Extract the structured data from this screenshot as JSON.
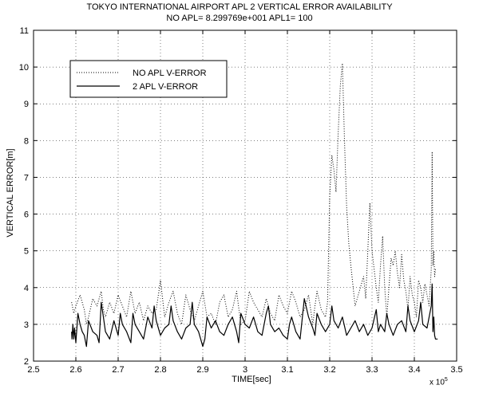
{
  "chart_data": {
    "type": "line",
    "title": "TOKYO INTERNATIONAL AIRPORT APL 2 VERTICAL ERROR AVAILABILITY",
    "subtitle": "NO APL= 8.299769e+001  APL1= 100",
    "xlabel": "TIME[sec]",
    "ylabel": "VERTICAL ERROR[m]",
    "x_multiplier": "x 10",
    "x_multiplier_exp": "5",
    "xlim": [
      2.5,
      3.5
    ],
    "ylim": [
      2,
      11
    ],
    "xticks": [
      "2.5",
      "2.6",
      "2.7",
      "2.8",
      "2.9",
      "3",
      "3.1",
      "3.2",
      "3.3",
      "3.4",
      "3.5"
    ],
    "yticks": [
      "2",
      "3",
      "4",
      "5",
      "6",
      "7",
      "8",
      "9",
      "10",
      "11"
    ],
    "grid": true,
    "legend_position": "top-left",
    "series": [
      {
        "name": "NO APL V-ERROR",
        "style": "dotted",
        "color": "#000000",
        "x": [
          2.59,
          2.595,
          2.6,
          2.61,
          2.62,
          2.625,
          2.63,
          2.64,
          2.65,
          2.66,
          2.665,
          2.67,
          2.68,
          2.69,
          2.7,
          2.71,
          2.72,
          2.73,
          2.74,
          2.75,
          2.76,
          2.77,
          2.78,
          2.79,
          2.8,
          2.81,
          2.82,
          2.83,
          2.84,
          2.85,
          2.86,
          2.87,
          2.88,
          2.89,
          2.9,
          2.91,
          2.92,
          2.93,
          2.94,
          2.95,
          2.96,
          2.97,
          2.98,
          2.99,
          3.0,
          3.01,
          3.02,
          3.03,
          3.04,
          3.05,
          3.06,
          3.07,
          3.08,
          3.09,
          3.1,
          3.11,
          3.12,
          3.13,
          3.14,
          3.15,
          3.16,
          3.165,
          3.17,
          3.18,
          3.19,
          3.195,
          3.2,
          3.205,
          3.21,
          3.215,
          3.22,
          3.225,
          3.23,
          3.235,
          3.24,
          3.245,
          3.25,
          3.26,
          3.27,
          3.28,
          3.285,
          3.29,
          3.295,
          3.3,
          3.31,
          3.315,
          3.32,
          3.325,
          3.33,
          3.335,
          3.34,
          3.345,
          3.35,
          3.355,
          3.36,
          3.365,
          3.37,
          3.375,
          3.38,
          3.385,
          3.39,
          3.395,
          3.4,
          3.405,
          3.41,
          3.415,
          3.42,
          3.425,
          3.43,
          3.435,
          3.44,
          3.442,
          3.444,
          3.446,
          3.448,
          3.45
        ],
        "y": [
          3.6,
          3.3,
          3.5,
          3.8,
          3.4,
          3.0,
          3.2,
          3.7,
          3.5,
          3.9,
          3.4,
          3.2,
          3.6,
          3.3,
          3.8,
          3.5,
          3.2,
          3.9,
          3.3,
          3.6,
          3.1,
          3.5,
          3.3,
          3.4,
          4.2,
          3.2,
          3.6,
          3.9,
          3.3,
          3.0,
          3.8,
          3.4,
          3.1,
          3.5,
          3.9,
          3.2,
          3.3,
          3.0,
          3.6,
          3.8,
          3.2,
          3.4,
          3.9,
          3.0,
          3.1,
          3.9,
          3.6,
          3.4,
          3.2,
          3.7,
          3.3,
          3.1,
          3.8,
          3.5,
          3.3,
          3.9,
          3.6,
          3.2,
          3.4,
          3.8,
          3.0,
          3.5,
          3.9,
          3.4,
          3.2,
          3.6,
          6.5,
          7.6,
          7.2,
          6.6,
          8.2,
          9.5,
          10.1,
          8.0,
          6.2,
          5.2,
          4.6,
          3.5,
          3.9,
          4.3,
          3.7,
          5.0,
          6.3,
          5.0,
          4.0,
          3.6,
          4.6,
          5.4,
          4.0,
          3.2,
          4.0,
          4.8,
          4.6,
          5.0,
          4.4,
          4.0,
          4.9,
          4.2,
          3.9,
          3.4,
          4.3,
          3.8,
          3.6,
          3.2,
          4.2,
          4.0,
          3.6,
          4.1,
          3.8,
          3.5,
          4.5,
          7.7,
          4.6,
          5.0,
          4.3,
          4.5
        ],
        "note": ""
      },
      {
        "name": "2 APL V-ERROR",
        "style": "solid",
        "color": "#000000",
        "x": [
          2.59,
          2.591,
          2.593,
          2.595,
          2.597,
          2.6,
          2.605,
          2.61,
          2.615,
          2.62,
          2.625,
          2.63,
          2.64,
          2.65,
          2.655,
          2.66,
          2.665,
          2.67,
          2.68,
          2.69,
          2.7,
          2.705,
          2.71,
          2.72,
          2.73,
          2.735,
          2.74,
          2.75,
          2.76,
          2.77,
          2.78,
          2.785,
          2.79,
          2.8,
          2.81,
          2.82,
          2.825,
          2.83,
          2.84,
          2.85,
          2.86,
          2.87,
          2.875,
          2.88,
          2.89,
          2.9,
          2.905,
          2.91,
          2.92,
          2.93,
          2.94,
          2.95,
          2.96,
          2.97,
          2.98,
          2.985,
          2.99,
          3.0,
          3.01,
          3.02,
          3.03,
          3.04,
          3.05,
          3.055,
          3.06,
          3.07,
          3.08,
          3.09,
          3.1,
          3.105,
          3.11,
          3.12,
          3.13,
          3.14,
          3.15,
          3.16,
          3.165,
          3.17,
          3.18,
          3.19,
          3.2,
          3.205,
          3.21,
          3.22,
          3.23,
          3.24,
          3.25,
          3.26,
          3.27,
          3.28,
          3.29,
          3.3,
          3.31,
          3.315,
          3.32,
          3.33,
          3.335,
          3.34,
          3.35,
          3.36,
          3.37,
          3.38,
          3.385,
          3.39,
          3.4,
          3.41,
          3.415,
          3.42,
          3.43,
          3.44,
          3.442,
          3.444,
          3.446,
          3.448,
          3.45,
          3.455
        ],
        "y": [
          2.8,
          2.6,
          3.0,
          2.6,
          2.9,
          2.5,
          3.3,
          3.0,
          2.8,
          2.7,
          2.4,
          3.1,
          2.8,
          2.7,
          2.5,
          3.6,
          3.2,
          2.8,
          2.6,
          3.1,
          2.7,
          3.3,
          3.0,
          2.8,
          2.5,
          3.3,
          3.0,
          2.8,
          2.6,
          3.2,
          2.9,
          3.5,
          3.1,
          2.7,
          2.9,
          3.0,
          3.5,
          3.1,
          2.8,
          2.6,
          2.9,
          3.0,
          3.6,
          3.0,
          2.8,
          2.4,
          2.6,
          3.2,
          2.9,
          3.1,
          2.8,
          2.7,
          3.0,
          3.2,
          2.8,
          2.5,
          3.3,
          3.0,
          2.9,
          3.2,
          2.8,
          2.7,
          3.3,
          3.5,
          3.0,
          2.8,
          2.9,
          2.7,
          2.6,
          3.0,
          3.2,
          2.8,
          2.6,
          3.7,
          3.2,
          2.9,
          2.7,
          3.3,
          3.0,
          2.8,
          3.0,
          3.5,
          3.1,
          2.9,
          3.2,
          2.7,
          2.9,
          3.1,
          2.8,
          3.0,
          2.7,
          2.9,
          3.4,
          2.8,
          3.0,
          2.8,
          3.3,
          3.0,
          2.7,
          3.0,
          3.1,
          2.8,
          3.5,
          3.1,
          2.8,
          3.1,
          3.6,
          3.0,
          2.9,
          3.5,
          4.1,
          2.8,
          3.2,
          2.7,
          2.6,
          2.6
        ],
        "note": ""
      }
    ]
  }
}
